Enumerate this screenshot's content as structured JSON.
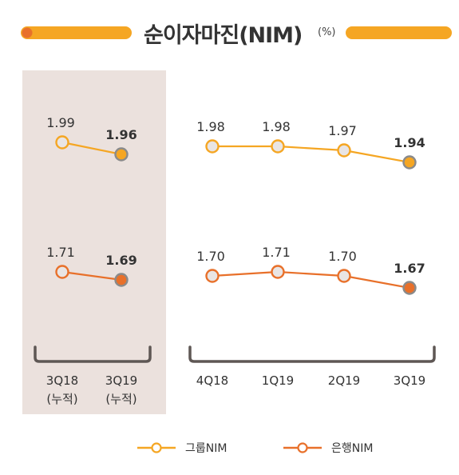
{
  "title": "순이자마진(NIM)",
  "unit": "(%)",
  "colors": {
    "group": "#f5a623",
    "bank": "#e8702a",
    "highlight_bg": "#ebe1dd",
    "bracket": "#5e5754",
    "hollow_fill": "#e9e5e4",
    "last_point_stroke": "#8a8a8a"
  },
  "chart_data": {
    "type": "line",
    "panels": [
      {
        "highlighted": true,
        "categories": [
          [
            "3Q18",
            "(누적)"
          ],
          [
            "3Q19",
            "(누적)"
          ]
        ],
        "series": [
          {
            "name": "그룹NIM",
            "key": "group",
            "values": [
              1.99,
              1.96
            ],
            "labels": [
              "1.99",
              "1.96"
            ]
          },
          {
            "name": "은행NIM",
            "key": "bank",
            "values": [
              1.71,
              1.69
            ],
            "labels": [
              "1.71",
              "1.69"
            ]
          }
        ]
      },
      {
        "highlighted": false,
        "categories": [
          [
            "4Q18"
          ],
          [
            "1Q19"
          ],
          [
            "2Q19"
          ],
          [
            "3Q19"
          ]
        ],
        "series": [
          {
            "name": "그룹NIM",
            "key": "group",
            "values": [
              1.98,
              1.98,
              1.97,
              1.94
            ],
            "labels": [
              "1.98",
              "1.98",
              "1.97",
              "1.94"
            ]
          },
          {
            "name": "은행NIM",
            "key": "bank",
            "values": [
              1.7,
              1.71,
              1.7,
              1.67
            ],
            "labels": [
              "1.70",
              "1.71",
              "1.70",
              "1.67"
            ]
          }
        ]
      }
    ],
    "legend": {
      "position": "bottom",
      "items": [
        {
          "key": "group",
          "label": "그룹NIM"
        },
        {
          "key": "bank",
          "label": "은행NIM"
        }
      ]
    }
  }
}
